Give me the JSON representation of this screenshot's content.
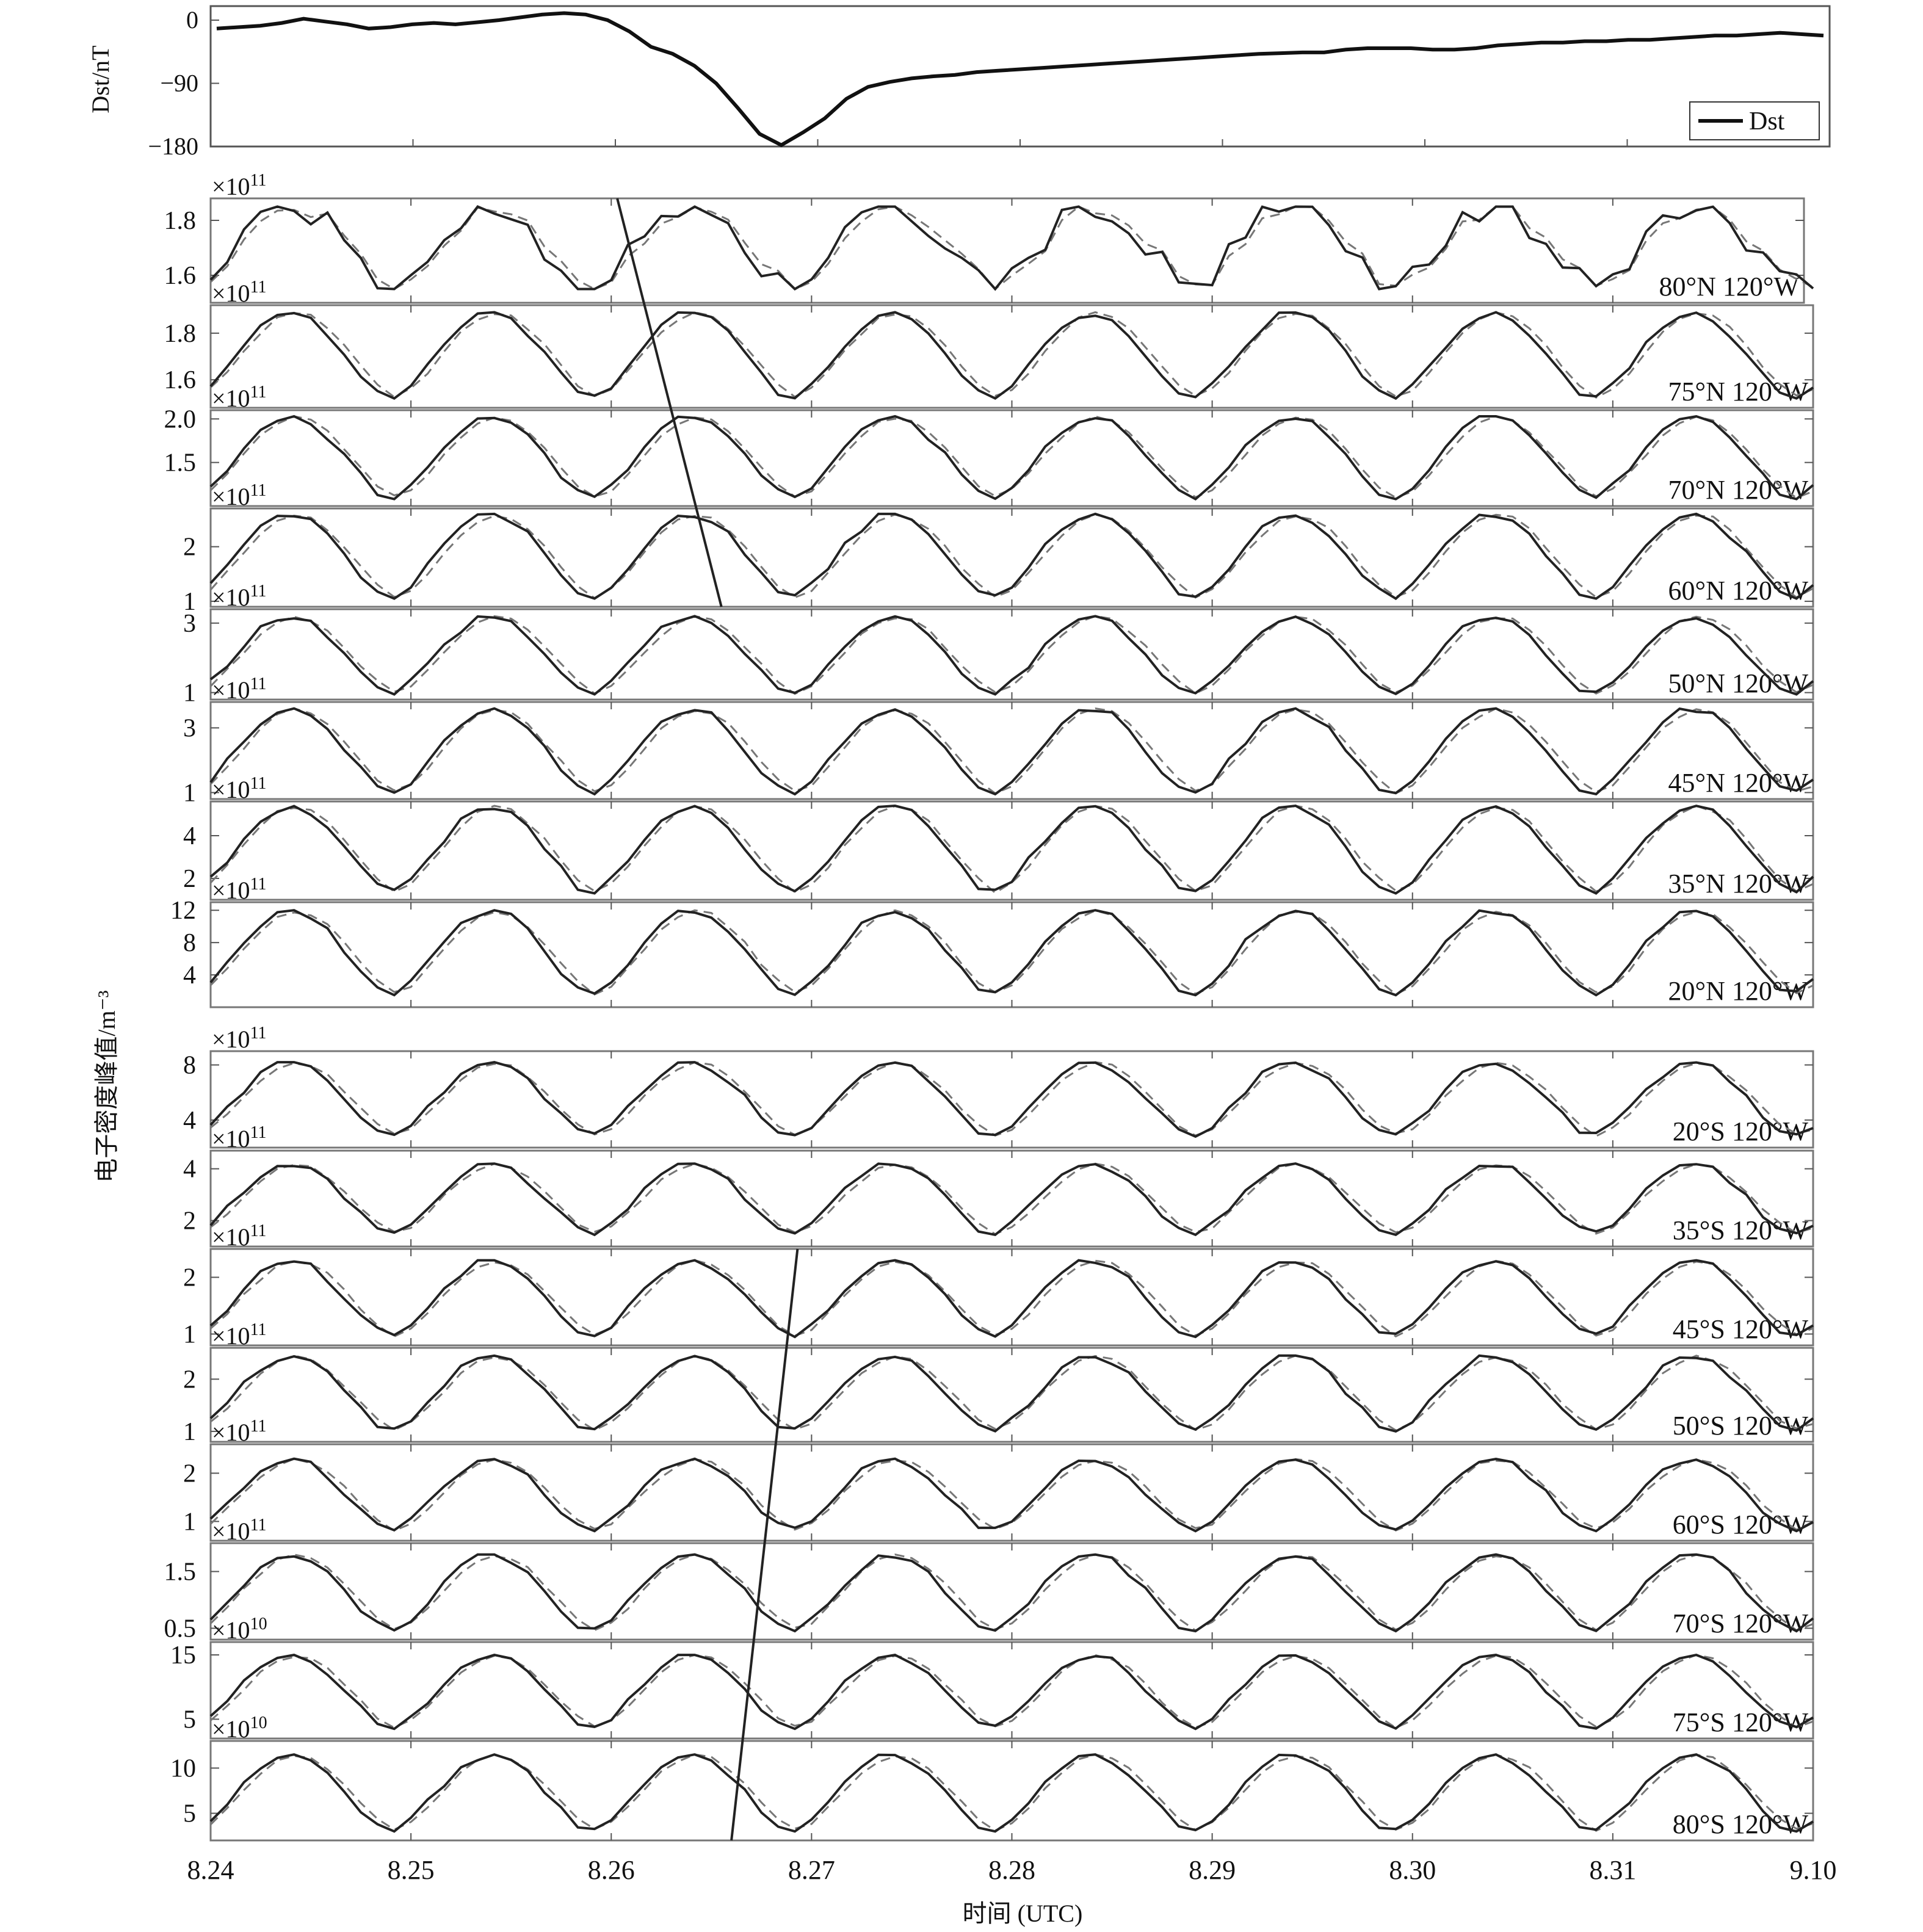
{
  "chart_data": {
    "type": "line",
    "xlabel": "时间 (UTC)",
    "ylabel": "电子密度峰值/m⁻³",
    "x_ticks": [
      "8.24",
      "8.25",
      "8.26",
      "8.27",
      "8.28",
      "8.29",
      "8.30",
      "8.31",
      "9.10"
    ],
    "x_range": [
      "8.24",
      "9.10"
    ],
    "dst": {
      "ylabel": "Dst/nT",
      "ylim": [
        -180,
        20
      ],
      "yticks": [
        0,
        -90,
        -180
      ],
      "ytick_labels": [
        "0",
        "−90",
        "−180"
      ],
      "legend": "Dst",
      "legend_position": "bottom-right",
      "values": [
        -12,
        -10,
        -8,
        -4,
        2,
        -2,
        -6,
        -12,
        -10,
        -6,
        -4,
        -6,
        -3,
        0,
        4,
        8,
        10,
        8,
        0,
        -16,
        -38,
        -48,
        -65,
        -90,
        -125,
        -162,
        -178,
        -160,
        -140,
        -112,
        -95,
        -88,
        -83,
        -80,
        -78,
        -74,
        -72,
        -70,
        -68,
        -66,
        -64,
        -62,
        -60,
        -58,
        -56,
        -54,
        -52,
        -50,
        -48,
        -47,
        -46,
        -46,
        -42,
        -40,
        -40,
        -40,
        -42,
        -42,
        -40,
        -36,
        -34,
        -32,
        -32,
        -30,
        -30,
        -28,
        -28,
        -26,
        -24,
        -22,
        -22,
        -20,
        -18,
        -20,
        -22
      ]
    },
    "panels": [
      {
        "label": "80°N 120°W",
        "exponent_label": "×10¹¹",
        "ylim": [
          1.5,
          1.88
        ],
        "yticks": [
          1.6,
          1.8
        ],
        "ytick_labels": [
          "1.6",
          "1.8"
        ],
        "min": 1.55,
        "max": 1.85,
        "noisy": true
      },
      {
        "label": "75°N 120°W",
        "exponent_label": "×10¹¹",
        "ylim": [
          1.48,
          1.92
        ],
        "yticks": [
          1.6,
          1.8
        ],
        "ytick_labels": [
          "1.6",
          "1.8"
        ],
        "min": 1.52,
        "max": 1.89
      },
      {
        "label": "70°N 120°W",
        "exponent_label": "×10¹¹",
        "ylim": [
          1.0,
          2.1
        ],
        "yticks": [
          1.5,
          2.0
        ],
        "ytick_labels": [
          "1.5",
          "2.0"
        ],
        "min": 1.08,
        "max": 2.03
      },
      {
        "label": "60°N 120°W",
        "exponent_label": "×10¹¹",
        "ylim": [
          0.9,
          2.7
        ],
        "yticks": [
          1,
          2
        ],
        "ytick_labels": [
          "1",
          "2"
        ],
        "min": 1.05,
        "max": 2.6
      },
      {
        "label": "50°N 120°W",
        "exponent_label": "×10¹¹",
        "ylim": [
          0.8,
          3.4
        ],
        "yticks": [
          1,
          3
        ],
        "ytick_labels": [
          "1",
          "3"
        ],
        "min": 0.95,
        "max": 3.2
      },
      {
        "label": "45°N 120°W",
        "exponent_label": "×10¹¹",
        "ylim": [
          0.8,
          3.8
        ],
        "yticks": [
          1,
          3
        ],
        "ytick_labels": [
          "1",
          "3"
        ],
        "min": 0.95,
        "max": 3.6
      },
      {
        "label": "35°N 120°W",
        "exponent_label": "×10¹¹",
        "ylim": [
          1.0,
          5.6
        ],
        "yticks": [
          2,
          4
        ],
        "ytick_labels": [
          "2",
          "4"
        ],
        "min": 1.3,
        "max": 5.4
      },
      {
        "label": "20°N 120°W",
        "exponent_label": "×10¹¹",
        "ylim": [
          0,
          13
        ],
        "yticks": [
          4,
          8,
          12
        ],
        "ytick_labels": [
          "4",
          "8",
          "12"
        ],
        "min": 1.5,
        "max": 12
      },
      {
        "label": "20°S 120°W",
        "exponent_label": "×10¹¹",
        "ylim": [
          2,
          9
        ],
        "yticks": [
          4,
          8
        ],
        "ytick_labels": [
          "4",
          "8"
        ],
        "min": 2.8,
        "max": 8.2
      },
      {
        "label": "35°S 120°W",
        "exponent_label": "×10¹¹",
        "ylim": [
          1.0,
          4.7
        ],
        "yticks": [
          2,
          4
        ],
        "ytick_labels": [
          "2",
          "4"
        ],
        "min": 1.45,
        "max": 4.2
      },
      {
        "label": "45°S 120°W",
        "exponent_label": "×10¹¹",
        "ylim": [
          0.8,
          2.5
        ],
        "yticks": [
          1,
          2
        ],
        "ytick_labels": [
          "1",
          "2"
        ],
        "min": 0.95,
        "max": 2.3
      },
      {
        "label": "50°S 120°W",
        "exponent_label": "×10¹¹",
        "ylim": [
          0.8,
          2.6
        ],
        "yticks": [
          1,
          2
        ],
        "ytick_labels": [
          "1",
          "2"
        ],
        "min": 1.0,
        "max": 2.45
      },
      {
        "label": "60°S 120°W",
        "exponent_label": "×10¹¹",
        "ylim": [
          0.6,
          2.6
        ],
        "yticks": [
          1,
          2
        ],
        "ytick_labels": [
          "1",
          "2"
        ],
        "min": 0.8,
        "max": 2.3
      },
      {
        "label": "70°S 120°W",
        "exponent_label": "×10¹¹",
        "ylim": [
          0.3,
          2.0
        ],
        "yticks": [
          0.5,
          1.5
        ],
        "ytick_labels": [
          "0.5",
          "1.5"
        ],
        "min": 0.45,
        "max": 1.8
      },
      {
        "label": "75°S 120°W",
        "exponent_label": "×10¹⁰",
        "ylim": [
          2,
          17
        ],
        "yticks": [
          5,
          15
        ],
        "ytick_labels": [
          "5",
          "15"
        ],
        "min": 3.5,
        "max": 15
      },
      {
        "label": "80°S 120°W",
        "exponent_label": "×10¹⁰",
        "ylim": [
          2,
          13
        ],
        "yticks": [
          5,
          10
        ],
        "ytick_labels": [
          "5",
          "10"
        ],
        "min": 3.0,
        "max": 11.5
      }
    ],
    "series_styles": [
      {
        "style": "solid",
        "color": "#222222"
      },
      {
        "style": "dashed",
        "color": "#777777"
      }
    ],
    "annotation_lines": [
      {
        "from": {
          "panel": 0,
          "day": 2.03,
          "frac": 1.0
        },
        "to": {
          "panel": 3,
          "day": 2.55,
          "frac": 0.0
        }
      },
      {
        "from": {
          "panel": 10,
          "day": 2.93,
          "frac": 1.0
        },
        "to": {
          "panel": 15,
          "day": 2.6,
          "frac": 0.0
        }
      }
    ]
  }
}
